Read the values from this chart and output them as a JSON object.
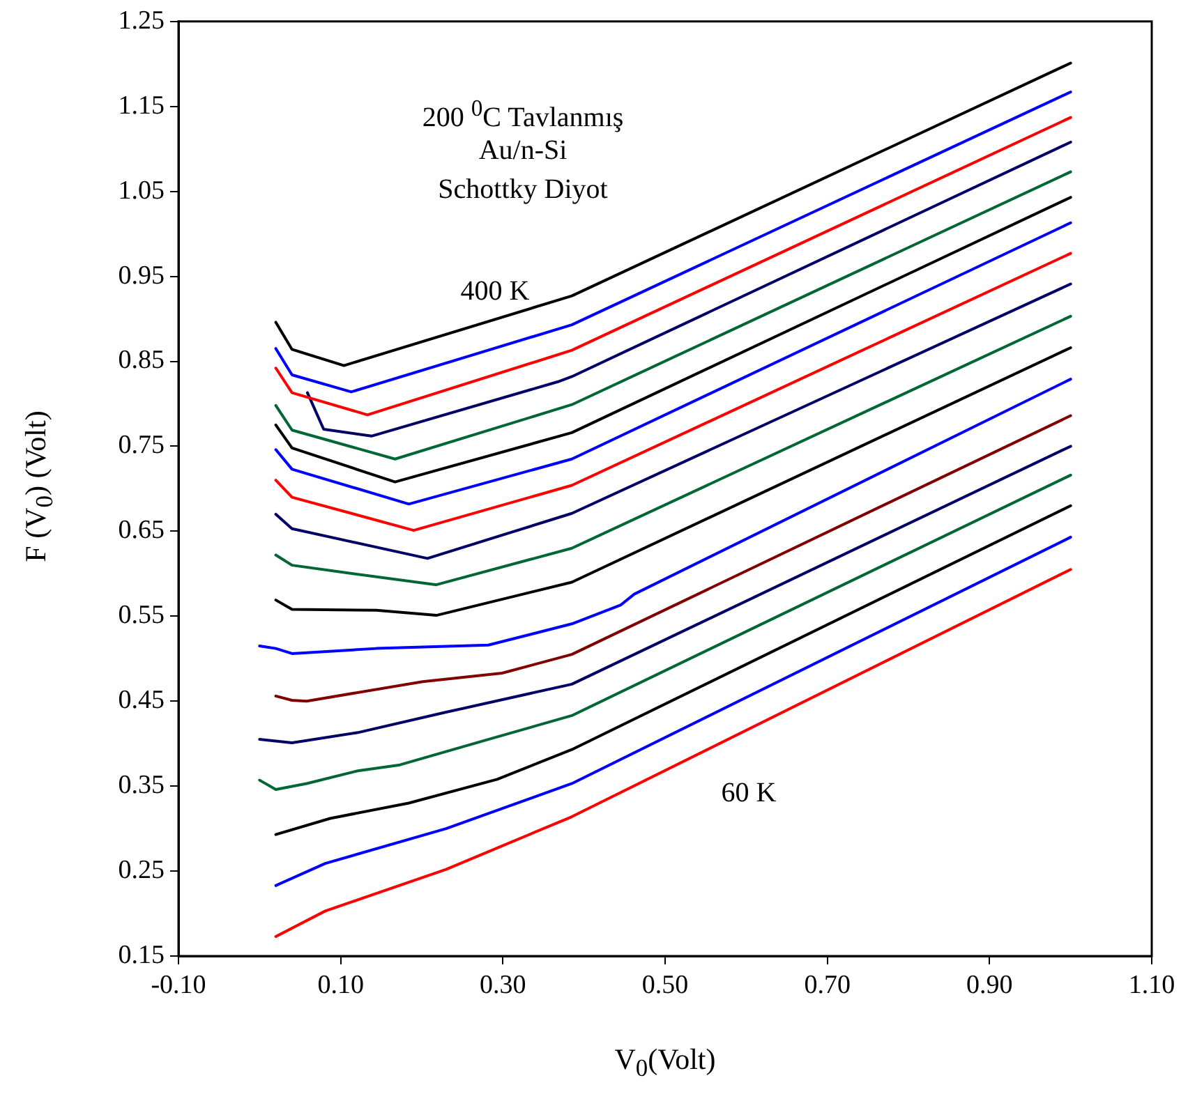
{
  "chart_data": {
    "type": "line",
    "xlabel": "V$_{0}$(Volt)",
    "ylabel": "F (V$_{0}$) (Volt)",
    "annotations": [
      "200 $^{0}$C Tavlanmış",
      "Au/n-Si",
      "Schottky Diyot",
      "400 K",
      "60 K"
    ],
    "xlim": [
      -0.1,
      1.1
    ],
    "ylim": [
      0.15,
      1.25
    ],
    "xticks": [
      {
        "value": -0.1,
        "label": "-0.10"
      },
      {
        "value": 0.1,
        "label": "0.10"
      },
      {
        "value": 0.3,
        "label": "0.30"
      },
      {
        "value": 0.5,
        "label": "0.50"
      },
      {
        "value": 0.7,
        "label": "0.70"
      },
      {
        "value": 0.9,
        "label": "0.90"
      },
      {
        "value": 1.1,
        "label": "1.10"
      }
    ],
    "yticks": [
      0.15,
      0.25,
      0.35,
      0.45,
      0.55,
      0.65,
      0.75,
      0.85,
      0.95,
      1.05,
      1.15,
      1.25
    ],
    "grid": false,
    "legend": false,
    "marker": "none",
    "line_style": "solid",
    "series": [
      {
        "color": "#000000",
        "x": [
          0.02,
          0.04,
          0.104,
          0.385,
          1.0
        ],
        "values": [
          0.896,
          0.864,
          0.845,
          0.927,
          1.201
        ]
      },
      {
        "color": "#0000ff",
        "x": [
          0.02,
          0.04,
          0.113,
          0.385,
          1.0
        ],
        "values": [
          0.865,
          0.834,
          0.814,
          0.893,
          1.167
        ]
      },
      {
        "color": "#ff0000",
        "x": [
          0.02,
          0.04,
          0.133,
          0.385,
          1.0
        ],
        "values": [
          0.842,
          0.813,
          0.787,
          0.863,
          1.137
        ]
      },
      {
        "color": "#000066",
        "x": [
          0.059,
          0.079,
          0.138,
          0.368,
          0.385,
          1.0
        ],
        "values": [
          0.813,
          0.77,
          0.762,
          0.826,
          0.832,
          1.108
        ]
      },
      {
        "color": "#006633",
        "x": [
          0.02,
          0.04,
          0.167,
          0.385,
          1.0
        ],
        "values": [
          0.798,
          0.769,
          0.735,
          0.799,
          1.073
        ]
      },
      {
        "color": "#000000",
        "x": [
          0.02,
          0.04,
          0.167,
          0.385,
          1.0
        ],
        "values": [
          0.775,
          0.748,
          0.708,
          0.766,
          1.043
        ]
      },
      {
        "color": "#0000ff",
        "x": [
          0.02,
          0.04,
          0.184,
          0.385,
          1.0
        ],
        "values": [
          0.746,
          0.723,
          0.682,
          0.735,
          1.013
        ]
      },
      {
        "color": "#ff0000",
        "x": [
          0.02,
          0.04,
          0.19,
          0.385,
          1.0
        ],
        "values": [
          0.71,
          0.69,
          0.651,
          0.704,
          0.977
        ]
      },
      {
        "color": "#000066",
        "x": [
          0.02,
          0.04,
          0.207,
          0.385,
          1.0
        ],
        "values": [
          0.67,
          0.653,
          0.618,
          0.671,
          0.941
        ]
      },
      {
        "color": "#006633",
        "x": [
          0.02,
          0.04,
          0.115,
          0.218,
          0.385,
          1.0
        ],
        "values": [
          0.622,
          0.61,
          0.6,
          0.587,
          0.63,
          0.903
        ]
      },
      {
        "color": "#000000",
        "x": [
          0.02,
          0.04,
          0.144,
          0.218,
          0.385,
          1.0
        ],
        "values": [
          0.569,
          0.558,
          0.557,
          0.551,
          0.59,
          0.866
        ]
      },
      {
        "color": "#0000ff",
        "x": [
          0.0,
          0.02,
          0.04,
          0.144,
          0.282,
          0.385,
          0.445,
          0.462,
          1.0
        ],
        "values": [
          0.515,
          0.512,
          0.506,
          0.512,
          0.516,
          0.541,
          0.563,
          0.576,
          0.829
        ]
      },
      {
        "color": "#800000",
        "x": [
          0.02,
          0.04,
          0.058,
          0.201,
          0.299,
          0.385,
          1.0
        ],
        "values": [
          0.456,
          0.451,
          0.45,
          0.473,
          0.483,
          0.505,
          0.786
        ]
      },
      {
        "color": "#000066",
        "x": [
          0.0,
          0.04,
          0.121,
          0.23,
          0.385,
          1.0
        ],
        "values": [
          0.405,
          0.401,
          0.413,
          0.437,
          0.47,
          0.75
        ]
      },
      {
        "color": "#006633",
        "x": [
          0.0,
          0.02,
          0.058,
          0.121,
          0.173,
          0.282,
          0.385,
          1.0
        ],
        "values": [
          0.357,
          0.346,
          0.353,
          0.368,
          0.375,
          0.405,
          0.433,
          0.716
        ]
      },
      {
        "color": "#000000",
        "x": [
          0.02,
          0.087,
          0.184,
          0.293,
          0.385,
          1.0
        ],
        "values": [
          0.293,
          0.312,
          0.33,
          0.358,
          0.393,
          0.68
        ]
      },
      {
        "color": "#0000ff",
        "x": [
          0.02,
          0.081,
          0.23,
          0.385,
          1.0
        ],
        "values": [
          0.233,
          0.259,
          0.3,
          0.353,
          0.643
        ]
      },
      {
        "color": "#ff0000",
        "x": [
          0.02,
          0.081,
          0.23,
          0.385,
          1.0
        ],
        "values": [
          0.173,
          0.203,
          0.252,
          0.314,
          0.605
        ]
      }
    ]
  }
}
